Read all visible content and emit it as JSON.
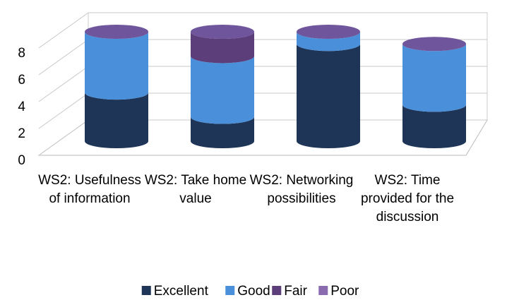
{
  "chart_data": {
    "type": "bar3d",
    "stacked": true,
    "categories": [
      "WS2: Usefulness of information",
      "WS2: Take home value",
      "WS2: Networking possibilities",
      "WS2: Time provided for the discussion"
    ],
    "series": [
      {
        "name": "Excellent",
        "color": "#1f3558",
        "values": [
          4,
          2,
          8,
          3
        ]
      },
      {
        "name": "Good",
        "color": "#4a8fd9",
        "values": [
          5,
          5,
          1,
          5
        ]
      },
      {
        "name": "Fair",
        "color": "#5c3f7a",
        "values": [
          0,
          2,
          0,
          0
        ]
      },
      {
        "name": "Poor",
        "color": "#8a6bb0",
        "values": [
          0,
          0,
          0,
          0
        ]
      }
    ],
    "ylim": [
      0,
      8
    ],
    "yticks": [
      0,
      2,
      4,
      6,
      8
    ],
    "grid": true,
    "legend": "bottom"
  }
}
